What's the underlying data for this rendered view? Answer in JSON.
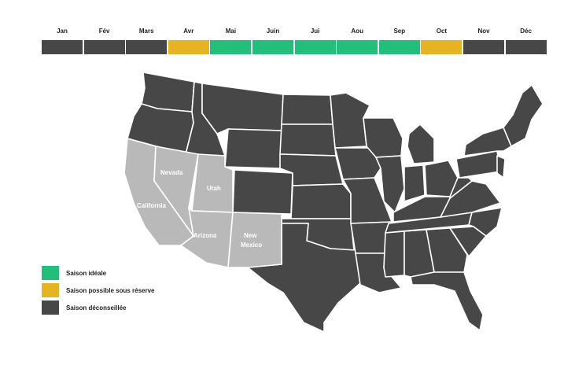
{
  "colors": {
    "ideal": "#22bf7a",
    "possible": "#e6b422",
    "avoid": "#474747",
    "highlight": "#b9b9b9"
  },
  "months": [
    {
      "label": "Jan",
      "status": "avoid"
    },
    {
      "label": "Fév",
      "status": "avoid"
    },
    {
      "label": "Mars",
      "status": "avoid"
    },
    {
      "label": "Avr",
      "status": "possible"
    },
    {
      "label": "Mai",
      "status": "ideal"
    },
    {
      "label": "Juin",
      "status": "ideal"
    },
    {
      "label": "Jui",
      "status": "ideal"
    },
    {
      "label": "Aou",
      "status": "ideal"
    },
    {
      "label": "Sep",
      "status": "ideal"
    },
    {
      "label": "Oct",
      "status": "possible"
    },
    {
      "label": "Nov",
      "status": "avoid"
    },
    {
      "label": "Déc",
      "status": "avoid"
    }
  ],
  "map": {
    "highlighted_states": [
      "California",
      "Nevada",
      "Utah",
      "Arizona",
      "New Mexico"
    ],
    "labels": {
      "california": "California",
      "nevada": "Nevada",
      "utah": "Utah",
      "arizona": "Arizona",
      "new_mexico_1": "New",
      "new_mexico_2": "Mexico"
    }
  },
  "legend": [
    {
      "label": "Saison idéale",
      "status": "ideal"
    },
    {
      "label": "Saison possible sous réserve",
      "status": "possible"
    },
    {
      "label": "Saison déconseillée",
      "status": "avoid"
    }
  ]
}
